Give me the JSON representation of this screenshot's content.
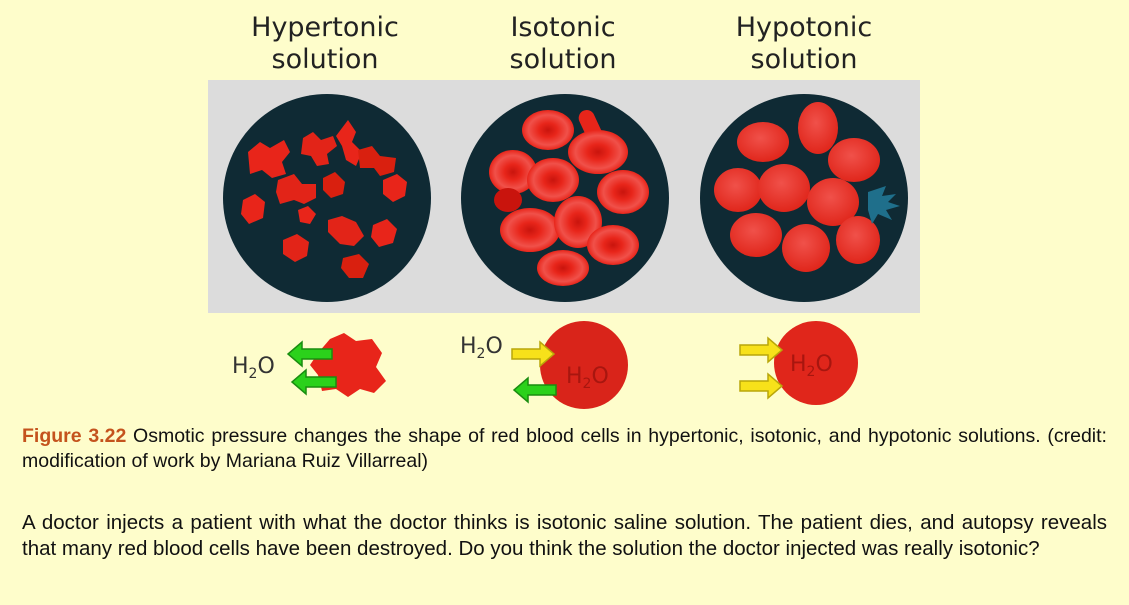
{
  "figure": {
    "columns": [
      {
        "line1": "Hypertonic",
        "line2": "solution"
      },
      {
        "line1": "Isotonic",
        "line2": "solution"
      },
      {
        "line1": "Hypotonic",
        "line2": "solution"
      }
    ],
    "h2o_label": "H",
    "h2o_sub": "2",
    "h2o_o": "O",
    "colors": {
      "panel_bg": "#dcdcdc",
      "circle_bg": "#0f2a34",
      "cell_red": "#e8251a",
      "cell_light": "#f0514a",
      "arrow_green": "#2bd11b",
      "arrow_yellow": "#f7e11a",
      "background": "#fefdcb",
      "caption_label": "#c4531d"
    }
  },
  "caption": {
    "label": "Figure 3.22",
    "text": " Osmotic pressure changes the shape of red blood cells in hypertonic, isotonic, and hypotonic solutions. (credit: modification of work by Mariana Ruiz Villarreal)"
  },
  "question": {
    "text": "A doctor injects a patient with what the doctor thinks is isotonic saline solution. The patient dies, and autopsy reveals that many red blood cells have been destroyed. Do you think the solution the doctor injected was really isotonic?"
  }
}
